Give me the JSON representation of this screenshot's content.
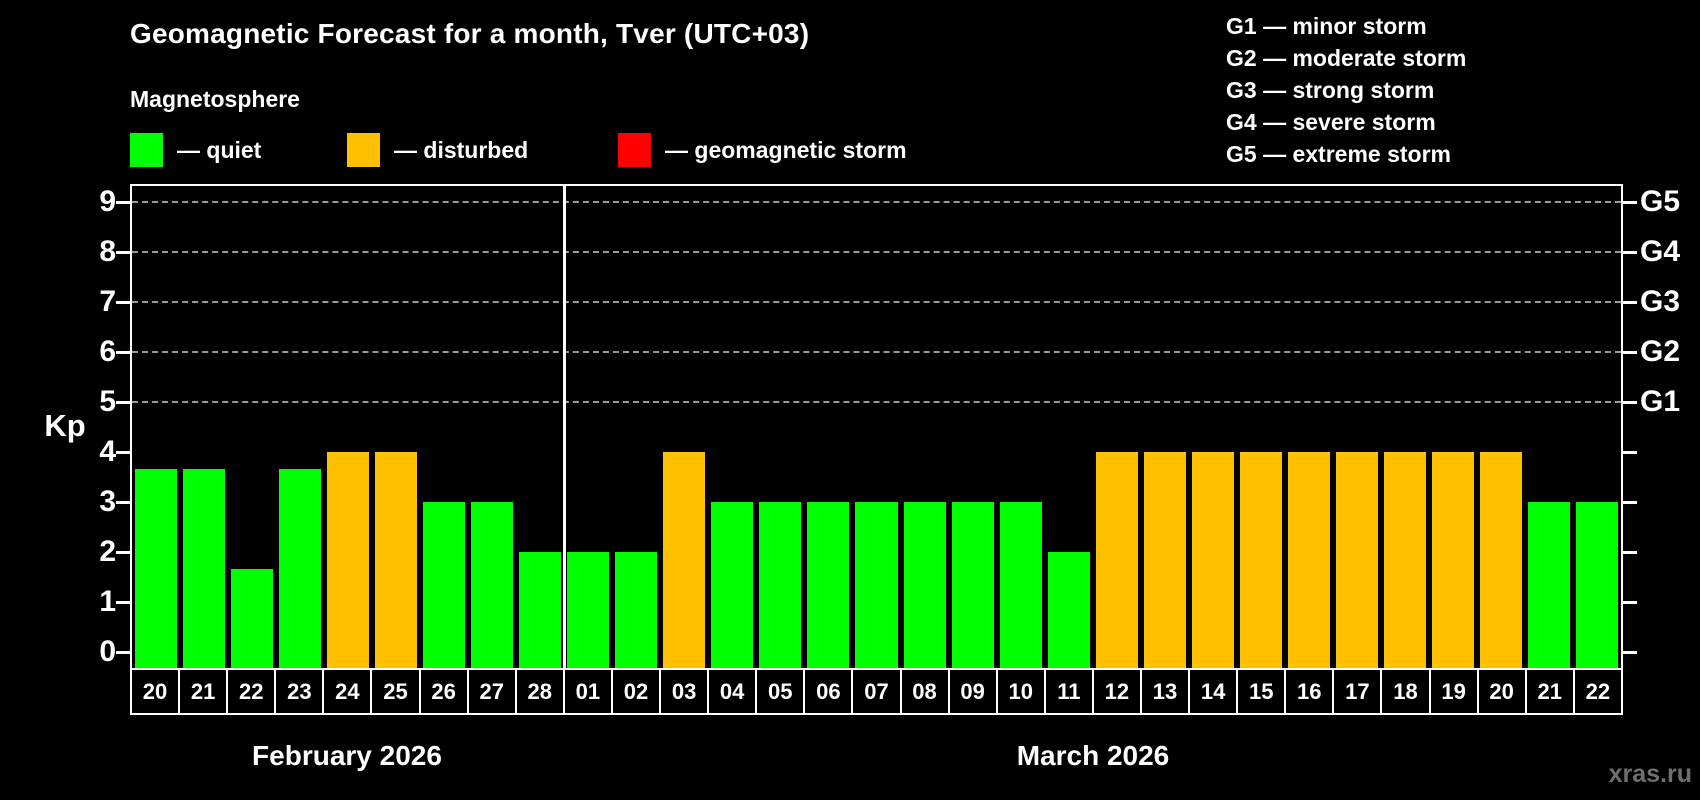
{
  "title": "Geomagnetic Forecast for a month, Tver (UTC+03)",
  "legend": {
    "title": "Magnetosphere",
    "items": [
      {
        "id": "quiet",
        "label": "— quiet",
        "color": "#00ff00"
      },
      {
        "id": "disturbed",
        "label": "— disturbed",
        "color": "#ffc000"
      },
      {
        "id": "storm",
        "label": "— geomagnetic storm",
        "color": "#ff0000"
      }
    ]
  },
  "g_legend": [
    "G1 — minor storm",
    "G2 — moderate storm",
    "G3 — strong storm",
    "G4 — severe storm",
    "G5 — extreme storm"
  ],
  "axis": {
    "kp_label": "Kp",
    "y_ticks": [
      "0",
      "1",
      "2",
      "3",
      "4",
      "5",
      "6",
      "7",
      "8",
      "9"
    ]
  },
  "months": [
    {
      "label": "February 2026",
      "days": 9
    },
    {
      "label": "March 2026",
      "days": 22
    }
  ],
  "watermark": "xras.ru",
  "chart_data": {
    "type": "bar",
    "title": "Geomagnetic Forecast for a month, Tver (UTC+03)",
    "ylabel": "Kp",
    "ylim": [
      0,
      9.4
    ],
    "yticks": [
      0,
      1,
      2,
      3,
      4,
      5,
      6,
      7,
      8,
      9
    ],
    "gridlines_kp": [
      5,
      6,
      7,
      8,
      9
    ],
    "grid_style": "dashed",
    "legend_position": "top-left",
    "right_labels": [
      {
        "kp": 5,
        "label": "G1"
      },
      {
        "kp": 6,
        "label": "G2"
      },
      {
        "kp": 7,
        "label": "G3"
      },
      {
        "kp": 8,
        "label": "G4"
      },
      {
        "kp": 9,
        "label": "G5"
      }
    ],
    "state_colors": {
      "quiet": "#00ff00",
      "disturbed": "#ffc000",
      "storm": "#ff0000"
    },
    "bars": [
      {
        "month": "February 2026",
        "day": "20",
        "kp": 3.67,
        "state": "quiet"
      },
      {
        "month": "February 2026",
        "day": "21",
        "kp": 3.67,
        "state": "quiet"
      },
      {
        "month": "February 2026",
        "day": "22",
        "kp": 1.67,
        "state": "quiet"
      },
      {
        "month": "February 2026",
        "day": "23",
        "kp": 3.67,
        "state": "quiet"
      },
      {
        "month": "February 2026",
        "day": "24",
        "kp": 4,
        "state": "disturbed"
      },
      {
        "month": "February 2026",
        "day": "25",
        "kp": 4,
        "state": "disturbed"
      },
      {
        "month": "February 2026",
        "day": "26",
        "kp": 3,
        "state": "quiet"
      },
      {
        "month": "February 2026",
        "day": "27",
        "kp": 3,
        "state": "quiet"
      },
      {
        "month": "February 2026",
        "day": "28",
        "kp": 2,
        "state": "quiet"
      },
      {
        "month": "March 2026",
        "day": "01",
        "kp": 2,
        "state": "quiet"
      },
      {
        "month": "March 2026",
        "day": "02",
        "kp": 2,
        "state": "quiet"
      },
      {
        "month": "March 2026",
        "day": "03",
        "kp": 4,
        "state": "disturbed"
      },
      {
        "month": "March 2026",
        "day": "04",
        "kp": 3,
        "state": "quiet"
      },
      {
        "month": "March 2026",
        "day": "05",
        "kp": 3,
        "state": "quiet"
      },
      {
        "month": "March 2026",
        "day": "06",
        "kp": 3,
        "state": "quiet"
      },
      {
        "month": "March 2026",
        "day": "07",
        "kp": 3,
        "state": "quiet"
      },
      {
        "month": "March 2026",
        "day": "08",
        "kp": 3,
        "state": "quiet"
      },
      {
        "month": "March 2026",
        "day": "09",
        "kp": 3,
        "state": "quiet"
      },
      {
        "month": "March 2026",
        "day": "10",
        "kp": 3,
        "state": "quiet"
      },
      {
        "month": "March 2026",
        "day": "11",
        "kp": 2,
        "state": "quiet"
      },
      {
        "month": "March 2026",
        "day": "12",
        "kp": 4,
        "state": "disturbed"
      },
      {
        "month": "March 2026",
        "day": "13",
        "kp": 4,
        "state": "disturbed"
      },
      {
        "month": "March 2026",
        "day": "14",
        "kp": 4,
        "state": "disturbed"
      },
      {
        "month": "March 2026",
        "day": "15",
        "kp": 4,
        "state": "disturbed"
      },
      {
        "month": "March 2026",
        "day": "16",
        "kp": 4,
        "state": "disturbed"
      },
      {
        "month": "March 2026",
        "day": "17",
        "kp": 4,
        "state": "disturbed"
      },
      {
        "month": "March 2026",
        "day": "18",
        "kp": 4,
        "state": "disturbed"
      },
      {
        "month": "March 2026",
        "day": "19",
        "kp": 4,
        "state": "disturbed"
      },
      {
        "month": "March 2026",
        "day": "20",
        "kp": 4,
        "state": "disturbed"
      },
      {
        "month": "March 2026",
        "day": "21",
        "kp": 3,
        "state": "quiet"
      },
      {
        "month": "March 2026",
        "day": "22",
        "kp": 3,
        "state": "quiet"
      }
    ]
  }
}
